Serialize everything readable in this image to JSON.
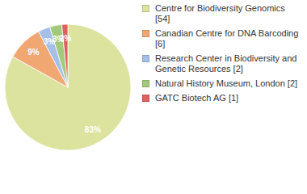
{
  "chart_data": {
    "type": "pie",
    "categories": [
      "Centre for Biodiversity Genomics [54]",
      "Canadian Centre for DNA Barcoding [6]",
      "Research Center in Biodiversity and Genetic Resources [2]",
      "Natural History Museum, London [2]",
      "GATC Biotech AG [1]"
    ],
    "values": [
      83.08,
      9.23,
      3.08,
      3.08,
      1.54
    ],
    "value_labels": [
      "83%",
      "9%",
      "3%",
      "3%",
      "2%"
    ],
    "colors": [
      "#dce39f",
      "#f1a772",
      "#a6bfe6",
      "#a3c97c",
      "#e0625e"
    ],
    "data_labels": true,
    "legend": "right"
  }
}
